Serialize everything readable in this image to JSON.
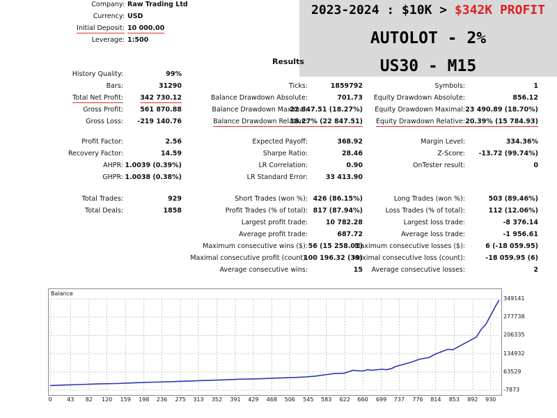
{
  "banner": {
    "line1_prefix": "2023-2024 : $10K > ",
    "line1_highlight": "$342K PROFIT",
    "line2": "AUTOLOT - 2%",
    "line3": "US30 - M15",
    "highlight_color": "#e02020"
  },
  "header": {
    "company_label": "Company:",
    "company": "Raw Trading Ltd",
    "currency_label": "Currency:",
    "currency": "USD",
    "deposit_label": "Initial Deposit:",
    "deposit": "10 000.00",
    "leverage_label": "Leverage:",
    "leverage": "1:500"
  },
  "results_title": "Results",
  "col1": [
    {
      "label": "History Quality:",
      "value": "99%"
    },
    {
      "label": "Bars:",
      "value": "31290"
    },
    {
      "label": "Total Net Profit:",
      "value": "342 730.12"
    },
    {
      "label": "Gross Profit:",
      "value": "561 870.88"
    },
    {
      "label": "Gross Loss:",
      "value": "-219 140.76"
    },
    {
      "label": "Profit Factor:",
      "value": "2.56"
    },
    {
      "label": "Recovery Factor:",
      "value": "14.59"
    },
    {
      "label": "AHPR:",
      "value": "1.0039 (0.39%)"
    },
    {
      "label": "GHPR:",
      "value": "1.0038 (0.38%)"
    },
    {
      "label": "Total Trades:",
      "value": "929"
    },
    {
      "label": "Total Deals:",
      "value": "1858"
    }
  ],
  "col2": [
    {
      "label": "Ticks:",
      "value": "1859792"
    },
    {
      "label": "Balance Drawdown Absolute:",
      "value": "701.73"
    },
    {
      "label": "Balance Drawdown Maximal:",
      "value": "22 847.51 (18.27%)"
    },
    {
      "label": "Balance Drawdown Relative:",
      "value": "18.27% (22 847.51)"
    },
    {
      "label": "Expected Payoff:",
      "value": "368.92"
    },
    {
      "label": "Sharpe Ratio:",
      "value": "28.46"
    },
    {
      "label": "LR Correlation:",
      "value": "0.90"
    },
    {
      "label": "LR Standard Error:",
      "value": "33 413.90"
    },
    {
      "label": "Short Trades (won %):",
      "value": "426 (86.15%)"
    },
    {
      "label": "Profit Trades (% of total):",
      "value": "817 (87.94%)"
    },
    {
      "label": "Largest profit trade:",
      "value": "10 782.28"
    },
    {
      "label": "Average profit trade:",
      "value": "687.72"
    },
    {
      "label": "Maximum consecutive wins ($):",
      "value": "56 (15 258.01)"
    },
    {
      "label": "Maximal consecutive profit (count):",
      "value": "100 196.32 (39)"
    },
    {
      "label": "Average consecutive wins:",
      "value": "15"
    }
  ],
  "col3": [
    {
      "label": "Symbols:",
      "value": "1"
    },
    {
      "label": "Equity Drawdown Absolute:",
      "value": "856.12"
    },
    {
      "label": "Equity Drawdown Maximal:",
      "value": "23 490.89 (18.70%)"
    },
    {
      "label": "Equity Drawdown Relative:",
      "value": "20.39% (15 784.93)"
    },
    {
      "label": "Margin Level:",
      "value": "334.36%"
    },
    {
      "label": "Z-Score:",
      "value": "-13.72 (99.74%)"
    },
    {
      "label": "OnTester result:",
      "value": "0"
    },
    {
      "label": "Long Trades (won %):",
      "value": "503 (89.46%)"
    },
    {
      "label": "Loss Trades (% of total):",
      "value": "112 (12.06%)"
    },
    {
      "label": "Largest loss trade:",
      "value": "-8 376.14"
    },
    {
      "label": "Average loss trade:",
      "value": "-1 956.61"
    },
    {
      "label": "Maximum consecutive losses ($):",
      "value": "6 (-18 059.95)"
    },
    {
      "label": "Maximal consecutive loss (count):",
      "value": "-18 059.95 (6)"
    },
    {
      "label": "Average consecutive losses:",
      "value": "2"
    }
  ],
  "chart_data": {
    "type": "line",
    "title": "Balance",
    "x_ticks": [
      "0",
      "43",
      "82",
      "120",
      "159",
      "198",
      "236",
      "275",
      "313",
      "352",
      "391",
      "429",
      "468",
      "506",
      "545",
      "583",
      "622",
      "660",
      "699",
      "737",
      "776",
      "814",
      "853",
      "892",
      "930"
    ],
    "y_ticks": [
      "349141",
      "277738",
      "206335",
      "134932",
      "63529",
      "-7873"
    ],
    "ylim": [
      -7873,
      349141
    ],
    "xlim": [
      0,
      948
    ],
    "grid": true,
    "series": [
      {
        "color": "#2b35b0",
        "x": [
          0,
          30,
          60,
          100,
          140,
          180,
          220,
          260,
          300,
          330,
          360,
          400,
          430,
          460,
          490,
          520,
          540,
          560,
          580,
          600,
          620,
          640,
          650,
          660,
          670,
          680,
          700,
          710,
          720,
          730,
          740,
          760,
          780,
          800,
          810,
          820,
          830,
          840,
          850,
          860,
          870,
          880,
          890,
          900,
          910,
          920,
          930,
          940,
          948
        ],
        "y": [
          10000,
          12000,
          14000,
          16500,
          18000,
          21000,
          23500,
          25500,
          28000,
          30000,
          32000,
          35000,
          36000,
          38000,
          40000,
          42000,
          44000,
          47000,
          52000,
          57000,
          58000,
          70000,
          68000,
          67000,
          72000,
          70000,
          74000,
          72000,
          76000,
          85000,
          90000,
          100000,
          113000,
          120000,
          130000,
          138000,
          145000,
          152000,
          150000,
          160000,
          170000,
          180000,
          190000,
          200000,
          230000,
          250000,
          285000,
          320000,
          345000
        ]
      }
    ]
  }
}
